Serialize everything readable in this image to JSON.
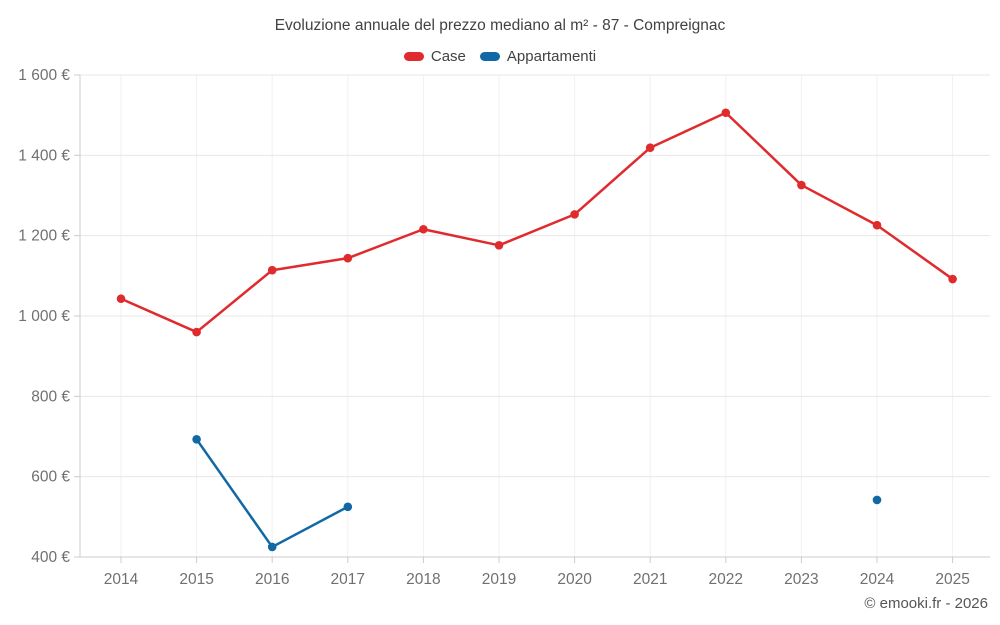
{
  "footer": {
    "copyright": "© emooki.fr - 2026"
  },
  "chart_data": {
    "type": "line",
    "title": "Evoluzione annuale del prezzo mediano al m² - 87 - Compreignac",
    "x": [
      2014,
      2015,
      2016,
      2017,
      2018,
      2019,
      2020,
      2021,
      2022,
      2023,
      2024,
      2025
    ],
    "series": [
      {
        "name": "Case",
        "color": "#e02b2e",
        "values": [
          1043,
          960,
          1114,
          1144,
          1216,
          1176,
          1253,
          1419,
          1506,
          1326,
          1226,
          1092
        ]
      },
      {
        "name": "Appartamenti",
        "color": "#1268a4",
        "values": [
          null,
          693,
          425,
          525,
          null,
          null,
          null,
          null,
          null,
          null,
          542,
          null
        ]
      }
    ],
    "ylim": [
      400,
      1600
    ],
    "yticks": [
      400,
      600,
      800,
      1000,
      1200,
      1400,
      1600
    ],
    "ytick_labels": [
      "400 €",
      "600 €",
      "800 €",
      "1 000 €",
      "1 200 €",
      "1 400 €",
      "1 600 €"
    ],
    "grid": true,
    "legend_position": "top",
    "colors": {
      "title_text": "#424242",
      "axis_text": "#707070",
      "h_gridline": "#e7e7e7",
      "v_gridline": "#f1f1f1",
      "axis_line": "#cccccc"
    }
  }
}
